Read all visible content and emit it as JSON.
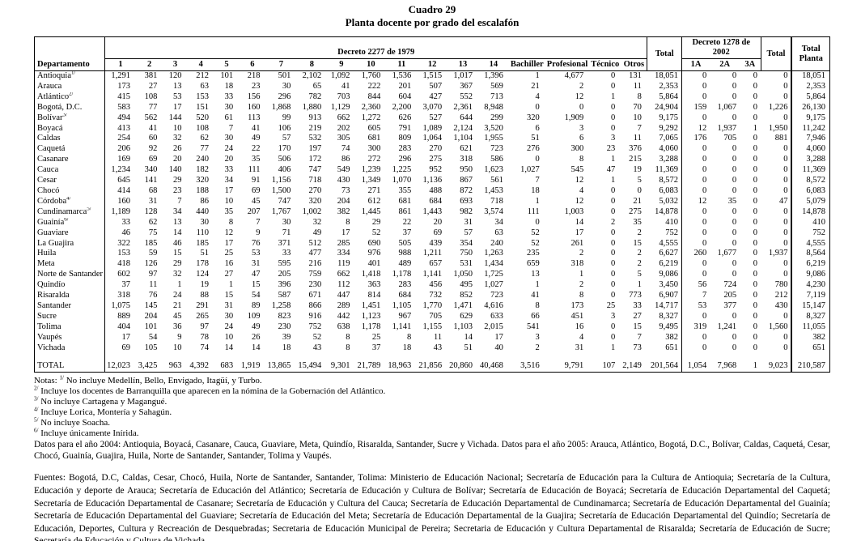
{
  "title": {
    "line1": "Cuadro 29",
    "line2": "Planta docente por grado del escalafón"
  },
  "table": {
    "header": {
      "departamento": "Departamento",
      "decreto2277": "Decreto 2277 de 1979",
      "decreto1278": "Decreto 1278 de 2002",
      "total": "Total",
      "total_planta": "Total Planta",
      "cols2277": [
        "1",
        "2",
        "3",
        "4",
        "5",
        "6",
        "7",
        "8",
        "9",
        "10",
        "11",
        "12",
        "13",
        "14",
        "Bachiller",
        "Profesional",
        "Técnico",
        "Otros"
      ],
      "cols1278": [
        "1A",
        "2A",
        "3A"
      ]
    },
    "rows": [
      {
        "name": "Antioquia",
        "sup": "1/",
        "values": [
          "1,291",
          "381",
          "120",
          "212",
          "101",
          "218",
          "501",
          "2,102",
          "1,092",
          "1,760",
          "1,536",
          "1,515",
          "1,017",
          "1,396",
          "1",
          "4,677",
          "0",
          "131",
          "18,051",
          "0",
          "0",
          "0",
          "0",
          "18,051"
        ]
      },
      {
        "name": "Arauca",
        "sup": "",
        "values": [
          "173",
          "27",
          "13",
          "63",
          "18",
          "23",
          "30",
          "65",
          "41",
          "222",
          "201",
          "507",
          "367",
          "569",
          "21",
          "2",
          "0",
          "11",
          "2,353",
          "0",
          "0",
          "0",
          "0",
          "2,353"
        ]
      },
      {
        "name": "Atlántico",
        "sup": "2/",
        "values": [
          "415",
          "108",
          "53",
          "153",
          "33",
          "156",
          "296",
          "782",
          "703",
          "844",
          "604",
          "427",
          "552",
          "713",
          "4",
          "12",
          "1",
          "8",
          "5,864",
          "0",
          "0",
          "0",
          "0",
          "5,864"
        ]
      },
      {
        "name": "Bogotá, D.C.",
        "sup": "",
        "values": [
          "583",
          "77",
          "17",
          "151",
          "30",
          "160",
          "1,868",
          "1,880",
          "1,129",
          "2,360",
          "2,200",
          "3,070",
          "2,361",
          "8,948",
          "0",
          "0",
          "0",
          "70",
          "24,904",
          "159",
          "1,067",
          "0",
          "1,226",
          "26,130"
        ]
      },
      {
        "name": "Bolívar",
        "sup": "3/",
        "values": [
          "494",
          "562",
          "144",
          "520",
          "61",
          "113",
          "99",
          "913",
          "662",
          "1,272",
          "626",
          "527",
          "644",
          "299",
          "320",
          "1,909",
          "0",
          "10",
          "9,175",
          "0",
          "0",
          "0",
          "0",
          "9,175"
        ]
      },
      {
        "name": "Boyacá",
        "sup": "",
        "values": [
          "413",
          "41",
          "10",
          "108",
          "7",
          "41",
          "106",
          "219",
          "202",
          "605",
          "791",
          "1,089",
          "2,124",
          "3,520",
          "6",
          "3",
          "0",
          "7",
          "9,292",
          "12",
          "1,937",
          "1",
          "1,950",
          "11,242"
        ]
      },
      {
        "name": "Caldas",
        "sup": "",
        "values": [
          "254",
          "60",
          "32",
          "62",
          "30",
          "49",
          "57",
          "532",
          "305",
          "681",
          "809",
          "1,064",
          "1,104",
          "1,955",
          "51",
          "6",
          "3",
          "11",
          "7,065",
          "176",
          "705",
          "0",
          "881",
          "7,946"
        ]
      },
      {
        "name": "Caquetá",
        "sup": "",
        "values": [
          "206",
          "92",
          "26",
          "77",
          "24",
          "22",
          "170",
          "197",
          "74",
          "300",
          "283",
          "270",
          "621",
          "723",
          "276",
          "300",
          "23",
          "376",
          "4,060",
          "0",
          "0",
          "0",
          "0",
          "4,060"
        ]
      },
      {
        "name": "Casanare",
        "sup": "",
        "values": [
          "169",
          "69",
          "20",
          "240",
          "20",
          "35",
          "506",
          "172",
          "86",
          "272",
          "296",
          "275",
          "318",
          "586",
          "0",
          "8",
          "1",
          "215",
          "3,288",
          "0",
          "0",
          "0",
          "0",
          "3,288"
        ]
      },
      {
        "name": "Cauca",
        "sup": "",
        "values": [
          "1,234",
          "340",
          "140",
          "182",
          "33",
          "111",
          "406",
          "747",
          "549",
          "1,239",
          "1,225",
          "952",
          "950",
          "1,623",
          "1,027",
          "545",
          "47",
          "19",
          "11,369",
          "0",
          "0",
          "0",
          "0",
          "11,369"
        ]
      },
      {
        "name": "Cesar",
        "sup": "",
        "values": [
          "645",
          "141",
          "29",
          "320",
          "34",
          "91",
          "1,156",
          "718",
          "430",
          "1,349",
          "1,070",
          "1,136",
          "867",
          "561",
          "7",
          "12",
          "1",
          "5",
          "8,572",
          "0",
          "0",
          "0",
          "0",
          "8,572"
        ]
      },
      {
        "name": "Chocó",
        "sup": "",
        "values": [
          "414",
          "68",
          "23",
          "188",
          "17",
          "69",
          "1,500",
          "270",
          "73",
          "271",
          "355",
          "488",
          "872",
          "1,453",
          "18",
          "4",
          "0",
          "0",
          "6,083",
          "0",
          "0",
          "0",
          "0",
          "6,083"
        ]
      },
      {
        "name": "Córdoba",
        "sup": "4/",
        "values": [
          "160",
          "31",
          "7",
          "86",
          "10",
          "45",
          "747",
          "320",
          "204",
          "612",
          "681",
          "684",
          "693",
          "718",
          "1",
          "12",
          "0",
          "21",
          "5,032",
          "12",
          "35",
          "0",
          "47",
          "5,079"
        ]
      },
      {
        "name": "Cundinamarca",
        "sup": "5/",
        "values": [
          "1,189",
          "128",
          "34",
          "440",
          "35",
          "207",
          "1,767",
          "1,002",
          "382",
          "1,445",
          "861",
          "1,443",
          "982",
          "3,574",
          "111",
          "1,003",
          "0",
          "275",
          "14,878",
          "0",
          "0",
          "0",
          "0",
          "14,878"
        ]
      },
      {
        "name": "Guainía",
        "sup": "6/",
        "values": [
          "33",
          "62",
          "13",
          "30",
          "8",
          "7",
          "30",
          "32",
          "8",
          "29",
          "22",
          "20",
          "31",
          "34",
          "0",
          "14",
          "2",
          "35",
          "410",
          "0",
          "0",
          "0",
          "0",
          "410"
        ]
      },
      {
        "name": "Guaviare",
        "sup": "",
        "values": [
          "46",
          "75",
          "14",
          "110",
          "12",
          "9",
          "71",
          "49",
          "17",
          "52",
          "37",
          "69",
          "57",
          "63",
          "52",
          "17",
          "0",
          "2",
          "752",
          "0",
          "0",
          "0",
          "0",
          "752"
        ]
      },
      {
        "name": "La Guajira",
        "sup": "",
        "values": [
          "322",
          "185",
          "46",
          "185",
          "17",
          "76",
          "371",
          "512",
          "285",
          "690",
          "505",
          "439",
          "354",
          "240",
          "52",
          "261",
          "0",
          "15",
          "4,555",
          "0",
          "0",
          "0",
          "0",
          "4,555"
        ]
      },
      {
        "name": "Huila",
        "sup": "",
        "values": [
          "153",
          "59",
          "15",
          "51",
          "25",
          "53",
          "33",
          "477",
          "334",
          "976",
          "988",
          "1,211",
          "750",
          "1,263",
          "235",
          "2",
          "0",
          "2",
          "6,627",
          "260",
          "1,677",
          "0",
          "1,937",
          "8,564"
        ]
      },
      {
        "name": "Meta",
        "sup": "",
        "values": [
          "418",
          "126",
          "29",
          "178",
          "16",
          "31",
          "595",
          "216",
          "119",
          "401",
          "489",
          "657",
          "531",
          "1,434",
          "659",
          "318",
          "0",
          "2",
          "6,219",
          "0",
          "0",
          "0",
          "0",
          "6,219"
        ]
      },
      {
        "name": "Norte de Santander",
        "sup": "",
        "values": [
          "602",
          "97",
          "32",
          "124",
          "27",
          "47",
          "205",
          "759",
          "662",
          "1,418",
          "1,178",
          "1,141",
          "1,050",
          "1,725",
          "13",
          "1",
          "0",
          "5",
          "9,086",
          "0",
          "0",
          "0",
          "0",
          "9,086"
        ]
      },
      {
        "name": "Quindío",
        "sup": "",
        "values": [
          "37",
          "11",
          "1",
          "19",
          "1",
          "15",
          "396",
          "230",
          "112",
          "363",
          "283",
          "456",
          "495",
          "1,027",
          "1",
          "2",
          "0",
          "1",
          "3,450",
          "56",
          "724",
          "0",
          "780",
          "4,230"
        ]
      },
      {
        "name": "Risaralda",
        "sup": "",
        "values": [
          "318",
          "76",
          "24",
          "88",
          "15",
          "54",
          "587",
          "671",
          "447",
          "814",
          "684",
          "732",
          "852",
          "723",
          "41",
          "8",
          "0",
          "773",
          "6,907",
          "7",
          "205",
          "0",
          "212",
          "7,119"
        ]
      },
      {
        "name": "Santander",
        "sup": "",
        "values": [
          "1,075",
          "145",
          "21",
          "291",
          "31",
          "89",
          "1,258",
          "866",
          "289",
          "1,451",
          "1,105",
          "1,770",
          "1,471",
          "4,616",
          "8",
          "173",
          "25",
          "33",
          "14,717",
          "53",
          "377",
          "0",
          "430",
          "15,147"
        ]
      },
      {
        "name": "Sucre",
        "sup": "",
        "values": [
          "889",
          "204",
          "45",
          "265",
          "30",
          "109",
          "823",
          "916",
          "442",
          "1,123",
          "967",
          "705",
          "629",
          "633",
          "66",
          "451",
          "3",
          "27",
          "8,327",
          "0",
          "0",
          "0",
          "0",
          "8,327"
        ]
      },
      {
        "name": "Tolima",
        "sup": "",
        "values": [
          "404",
          "101",
          "36",
          "97",
          "24",
          "49",
          "230",
          "752",
          "638",
          "1,178",
          "1,141",
          "1,155",
          "1,103",
          "2,015",
          "541",
          "16",
          "0",
          "15",
          "9,495",
          "319",
          "1,241",
          "0",
          "1,560",
          "11,055"
        ]
      },
      {
        "name": "Vaupés",
        "sup": "",
        "values": [
          "17",
          "54",
          "9",
          "78",
          "10",
          "26",
          "39",
          "52",
          "8",
          "25",
          "8",
          "11",
          "14",
          "17",
          "3",
          "4",
          "0",
          "7",
          "382",
          "0",
          "0",
          "0",
          "0",
          "382"
        ]
      },
      {
        "name": "Vichada",
        "sup": "",
        "values": [
          "69",
          "105",
          "10",
          "74",
          "14",
          "14",
          "18",
          "43",
          "8",
          "37",
          "18",
          "43",
          "51",
          "40",
          "2",
          "31",
          "1",
          "73",
          "651",
          "0",
          "0",
          "0",
          "0",
          "651"
        ]
      }
    ],
    "total_row": {
      "name": "TOTAL",
      "values": [
        "12,023",
        "3,425",
        "963",
        "4,392",
        "683",
        "1,919",
        "13,865",
        "15,494",
        "9,301",
        "21,789",
        "18,963",
        "21,856",
        "20,860",
        "40,468",
        "3,516",
        "9,791",
        "107",
        "2,149",
        "201,564",
        "1,054",
        "7,968",
        "1",
        "9,023",
        "210,587"
      ]
    }
  },
  "notes": [
    {
      "prefix": "Notas: ",
      "sup": "1/",
      "text": " No incluye Medellín, Bello, Envigado, Itagüí, y Turbo."
    },
    {
      "prefix": "",
      "sup": "2/",
      "text": " Incluye los docentes de Barranquilla que aparecen en la nómina de la Gobernación del Atlántico."
    },
    {
      "prefix": "",
      "sup": "3/",
      "text": " No incluye Cartagena y Magangué."
    },
    {
      "prefix": "",
      "sup": "4/",
      "text": " Incluye Lorica, Montería y Sahagún."
    },
    {
      "prefix": "",
      "sup": "5/",
      "text": " No incluye Soacha."
    },
    {
      "prefix": "",
      "sup": "6/",
      "text": " Incluye únicamente Inírida."
    }
  ],
  "datos": "Datos para el año 2004: Antioquia, Boyacá, Casanare, Cauca, Guaviare, Meta, Quindío, Risaralda, Santander,  Sucre y Vichada. Datos para el año 2005: Arauca, Atlántico, Bogotá, D.C., Bolívar, Caldas, Caquetá, Cesar, Chocó, Guainía, Guajira, Huila, Norte de Santander, Santander, Tolima y Vaupés.",
  "fuentes": "Fuentes: Bogotá, D.C, Caldas, Cesar, Chocó, Huila, Norte de Santander, Santander, Tolima: Ministerio de Educación Nacional; Secretaría de Educación para la Cultura de Antioquia; Secretaría de la Cultura, Educación y deporte de Arauca; Secretaría de Educación del Atlántico; Secretaría de Educación y Cultura de Bolívar; Secretaría de Educación de Boyacá; Secretaría de Educación Departamental del Caquetá; Secretaría de Educación Departamental de Casanare; Secretaría de Educación y Cultura del Cauca; Secretaría de Educación Departamental de Cundinamarca; Secretaría de Educación Departamental del Guainía; Secretaría de Educación Departamental del Guaviare; Secretaría de Educación del Meta; Secretaría de Educación Departamental de la Guajira; Secretaría de Educación Departamental del Quindío; Secretaría de Educación, Deportes, Cultura y Recreación de Desquebradas; Secretaria de Educación Municipal de Pereira; Secretaria de Educación y Cultura Departamental de Risaralda; Secretaría de Educación de Sucre; Secretaría de Educación y Cultura de Vichada."
}
